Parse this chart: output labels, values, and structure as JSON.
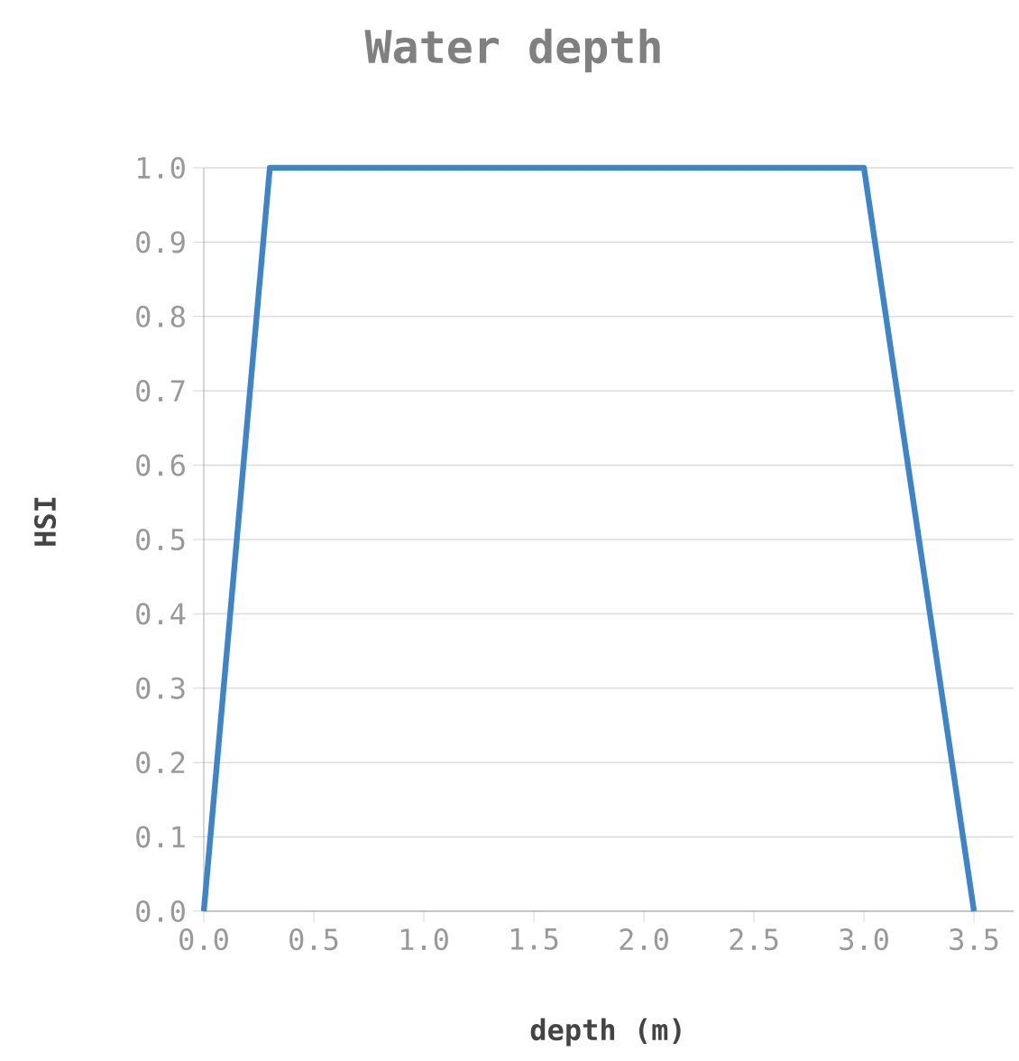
{
  "chart_data": {
    "type": "line",
    "title": "Water depth",
    "xlabel": "depth (m)",
    "ylabel": "HSI",
    "x": [
      0,
      0.3,
      3.0,
      3.5
    ],
    "series": [
      {
        "color": "#3d85c6",
        "values": [
          0,
          1,
          1,
          0
        ]
      }
    ],
    "xlim": [
      0,
      3.68
    ],
    "ylim": [
      0,
      1
    ],
    "xticks": [
      {
        "value": 0,
        "label": "0.0"
      },
      0.5,
      {
        "value": 1,
        "label": "1.0"
      },
      1.5,
      {
        "value": 2,
        "label": "2.0"
      },
      2.5,
      {
        "value": 3,
        "label": "3.0"
      },
      3.5
    ],
    "yticks": [
      {
        "value": 0,
        "label": "0.0"
      },
      0.1,
      0.2,
      0.3,
      0.4,
      0.5,
      0.6,
      0.7,
      0.8,
      0.9,
      {
        "value": 1,
        "label": "1.0"
      }
    ],
    "grid": "y",
    "marker": "none",
    "line_style": "solid"
  }
}
